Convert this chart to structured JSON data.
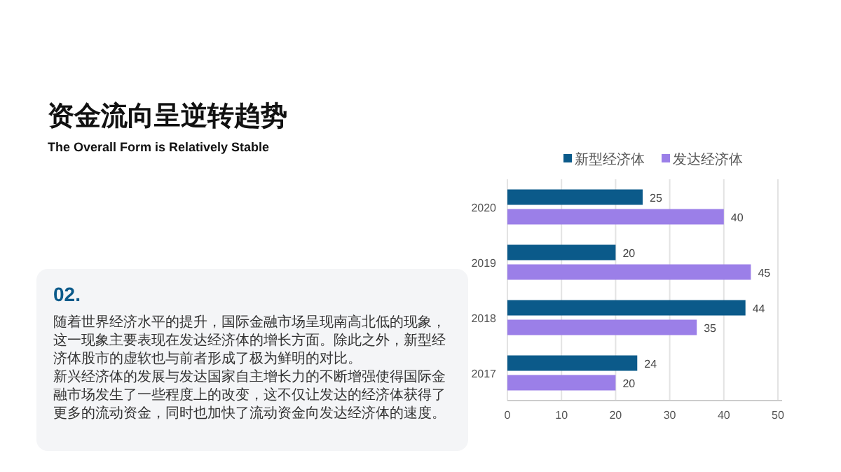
{
  "chart_data": {
    "type": "bar",
    "orientation": "horizontal",
    "title": "资金流向呈逆转趋势",
    "subtitle": "The Overall Form is Relatively Stable",
    "annotations": [
      "02.",
      "随着世界经济水平的提升，国际金融市场呈现南高北低的现象，这一现象主要表现在发达经济体的增长方面。除此之外，新型经济体股市的虚软也与前者形成了极为鲜明的对比。",
      "新兴经济体的发展与发达国家自主增长力的不断增强使得国际金融市场发生了一些程度上的改变，这不仅让发达的经济体获得了更多的流动资金，同时也加快了流动资金向发达经济体的速度。"
    ],
    "categories": [
      "2020",
      "2019",
      "2018",
      "2017"
    ],
    "series": [
      {
        "name": "新型经济体",
        "color": "#0b5a8a",
        "values": [
          25,
          20,
          44,
          24
        ]
      },
      {
        "name": "发达经济体",
        "color": "#9b7fe8",
        "values": [
          40,
          45,
          35,
          20
        ]
      }
    ],
    "xlim": [
      0,
      50
    ],
    "xticks": [
      0,
      10,
      20,
      30,
      40,
      50
    ],
    "grid": "x",
    "legend": "top",
    "data_labels": true
  }
}
